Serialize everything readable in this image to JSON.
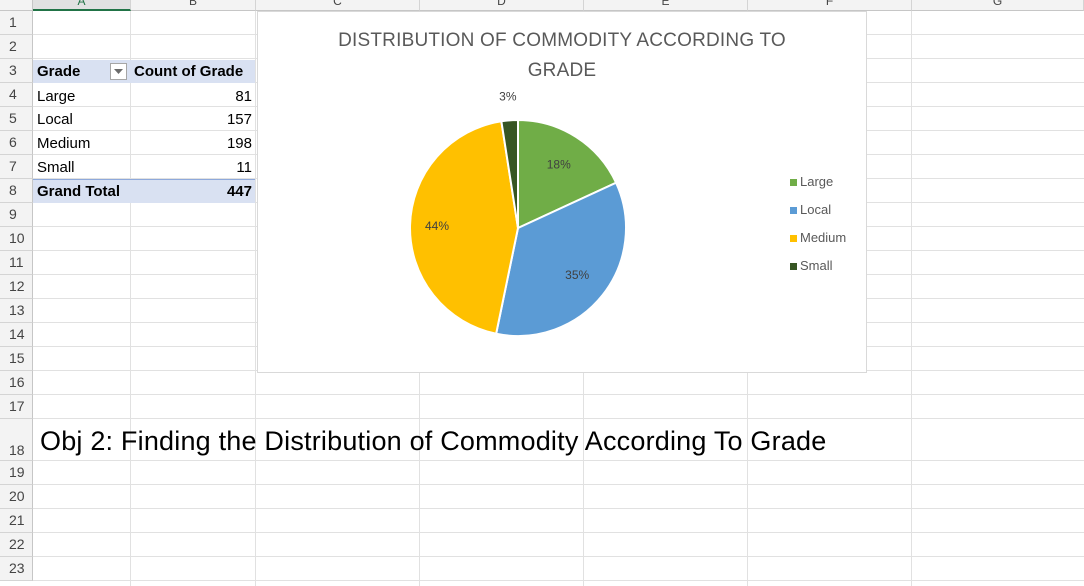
{
  "columns": [
    "A",
    "B",
    "C",
    "D",
    "E",
    "F",
    "G"
  ],
  "rows": [
    "1",
    "2",
    "3",
    "4",
    "5",
    "6",
    "7",
    "8",
    "9",
    "10",
    "11",
    "12",
    "13",
    "14",
    "15",
    "16",
    "17",
    "18",
    "19",
    "20",
    "21",
    "22",
    "23"
  ],
  "pivot": {
    "header_row_label": "Grade",
    "header_value_label": "Count of Grade",
    "rows": [
      {
        "label": "Large",
        "value": "81"
      },
      {
        "label": "Local",
        "value": "157"
      },
      {
        "label": "Medium",
        "value": "198"
      },
      {
        "label": "Small",
        "value": "11"
      }
    ],
    "total_label": "Grand Total",
    "total_value": "447",
    "filter_icon": "dropdown-filter-icon"
  },
  "chart": {
    "title_line1": "DISTRIBUTION OF COMMODITY ACCORDING TO",
    "title_line2": "GRADE"
  },
  "chart_data": {
    "type": "pie",
    "title": "DISTRIBUTION OF COMMODITY ACCORDING TO GRADE",
    "categories": [
      "Large",
      "Local",
      "Medium",
      "Small"
    ],
    "values": [
      81,
      157,
      198,
      11
    ],
    "labels": [
      "18%",
      "35%",
      "44%",
      "3%"
    ],
    "colors": [
      "#70ad47",
      "#5b9bd5",
      "#ffc000",
      "#375623"
    ],
    "legend_position": "right"
  },
  "objective_text": "Obj 2: Finding the Distribution of Commodity According To Grade"
}
